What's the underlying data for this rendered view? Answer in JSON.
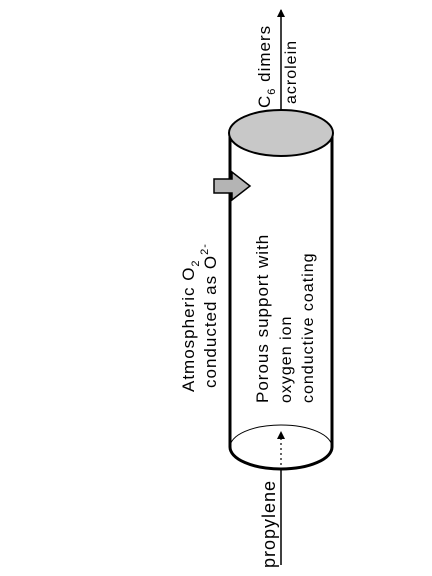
{
  "diagram": {
    "inlet_label": "propylene",
    "oxygen_label": {
      "line1_prefix": "Atmospheric O",
      "line1_sub": "2",
      "line2_prefix": "conducted as O",
      "line2_sup": "2-"
    },
    "support_label": {
      "line1": "Porous support with",
      "line2": "oxygen ion",
      "line3": "conductive coating"
    },
    "products_label": {
      "line1_prefix": "C",
      "line1_sub": "6",
      "line1_suffix": " dimers",
      "line2": "acrolein"
    },
    "colors": {
      "end_cap_fill": "#c8c8c8",
      "arrow_fill": "#b4b4b4",
      "stroke": "#000000"
    }
  }
}
